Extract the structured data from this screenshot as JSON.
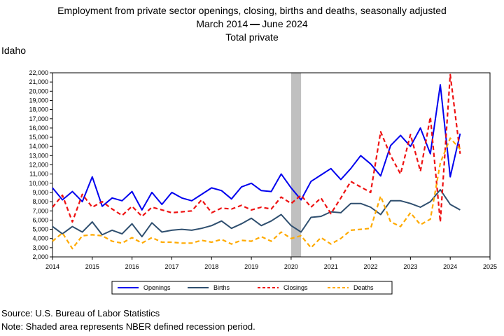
{
  "header": {
    "title_line1": "Employment from private sector openings, closing, births and deaths, seasonally adjusted",
    "title_line2_start": "March 2014",
    "title_line2_end": "June 2024",
    "title_line3": "Total private",
    "region": "Idaho"
  },
  "footer": {
    "source": "Source: U.S. Bureau of Labor Statistics",
    "note": "Note: Shaded area represents NBER defined recession period."
  },
  "colors": {
    "openings": "#0000ee",
    "births": "#2f4f6f",
    "closings": "#ee1111",
    "deaths": "#ffaa00",
    "recession": "#c0c0c0"
  },
  "chart_data": {
    "type": "line",
    "title": "Employment from private sector openings, closing, births and deaths, seasonally adjusted",
    "xlim": [
      2014,
      2025
    ],
    "ylim": [
      2000,
      22000
    ],
    "x_ticks": [
      "2014",
      "2015",
      "2016",
      "2017",
      "2018",
      "2019",
      "2020",
      "2021",
      "2022",
      "2023",
      "2024",
      "2025"
    ],
    "y_ticks": [
      "2,000",
      "3,000",
      "4,000",
      "5,000",
      "6,000",
      "7,000",
      "8,000",
      "9,000",
      "10,000",
      "11,000",
      "12,000",
      "13,000",
      "14,000",
      "15,000",
      "16,000",
      "17,000",
      "18,000",
      "19,000",
      "20,000",
      "21,000",
      "22,000"
    ],
    "recession": [
      2020.0,
      2020.25
    ],
    "legend_position": "bottom",
    "x": [
      2014.0,
      2014.25,
      2014.5,
      2014.75,
      2015.0,
      2015.25,
      2015.5,
      2015.75,
      2016.0,
      2016.25,
      2016.5,
      2016.75,
      2017.0,
      2017.25,
      2017.5,
      2017.75,
      2018.0,
      2018.25,
      2018.5,
      2018.75,
      2019.0,
      2019.25,
      2019.5,
      2019.75,
      2020.0,
      2020.25,
      2020.5,
      2020.75,
      2021.0,
      2021.25,
      2021.5,
      2021.75,
      2022.0,
      2022.25,
      2022.5,
      2022.75,
      2023.0,
      2023.25,
      2023.5,
      2023.75,
      2024.0,
      2024.25
    ],
    "series": [
      {
        "name": "Openings",
        "key": "openings",
        "dash": "solid",
        "values": [
          9500,
          8200,
          9100,
          8000,
          10700,
          7500,
          8400,
          8100,
          9100,
          7100,
          9000,
          7700,
          9000,
          8400,
          8100,
          8800,
          9500,
          9200,
          8300,
          9600,
          10000,
          9200,
          9100,
          11000,
          9500,
          8200,
          10200,
          10900,
          11600,
          10400,
          11600,
          13000,
          12100,
          10800,
          14100,
          15200,
          14000,
          16000,
          13200,
          20700,
          10700,
          15400
        ]
      },
      {
        "name": "Births",
        "key": "births",
        "dash": "solid",
        "values": [
          5300,
          4500,
          5300,
          4700,
          5800,
          4400,
          4900,
          4500,
          5600,
          4200,
          5700,
          4700,
          4900,
          5000,
          4900,
          5100,
          5400,
          5900,
          5100,
          5600,
          6200,
          5400,
          5900,
          6600,
          5400,
          4700,
          6300,
          6400,
          6900,
          6800,
          7800,
          7800,
          7400,
          6600,
          8100,
          8100,
          7800,
          7400,
          8000,
          9300,
          7700,
          7100
        ]
      },
      {
        "name": "Closings",
        "key": "closings",
        "dash": "dash",
        "values": [
          7400,
          8700,
          5800,
          8800,
          7400,
          8000,
          7200,
          6500,
          7500,
          6400,
          7400,
          7100,
          6800,
          6900,
          7000,
          8200,
          6800,
          7300,
          7200,
          7600,
          7100,
          7400,
          7200,
          8500,
          7800,
          8700,
          7400,
          8400,
          6700,
          8400,
          10200,
          9600,
          9000,
          15600,
          13000,
          11000,
          15300,
          11300,
          17200,
          5800,
          21800,
          13200
        ]
      },
      {
        "name": "Deaths",
        "key": "deaths",
        "dash": "dash",
        "values": [
          3700,
          4600,
          2900,
          4300,
          4400,
          4300,
          3700,
          3500,
          4100,
          3500,
          4100,
          3600,
          3600,
          3500,
          3500,
          3800,
          3600,
          3900,
          3400,
          3800,
          3700,
          4200,
          3700,
          4700,
          4000,
          4300,
          3000,
          4100,
          3400,
          4000,
          4900,
          5000,
          5100,
          8600,
          5800,
          5300,
          6800,
          5500,
          6100,
          12200,
          14900,
          13700
        ]
      }
    ]
  }
}
